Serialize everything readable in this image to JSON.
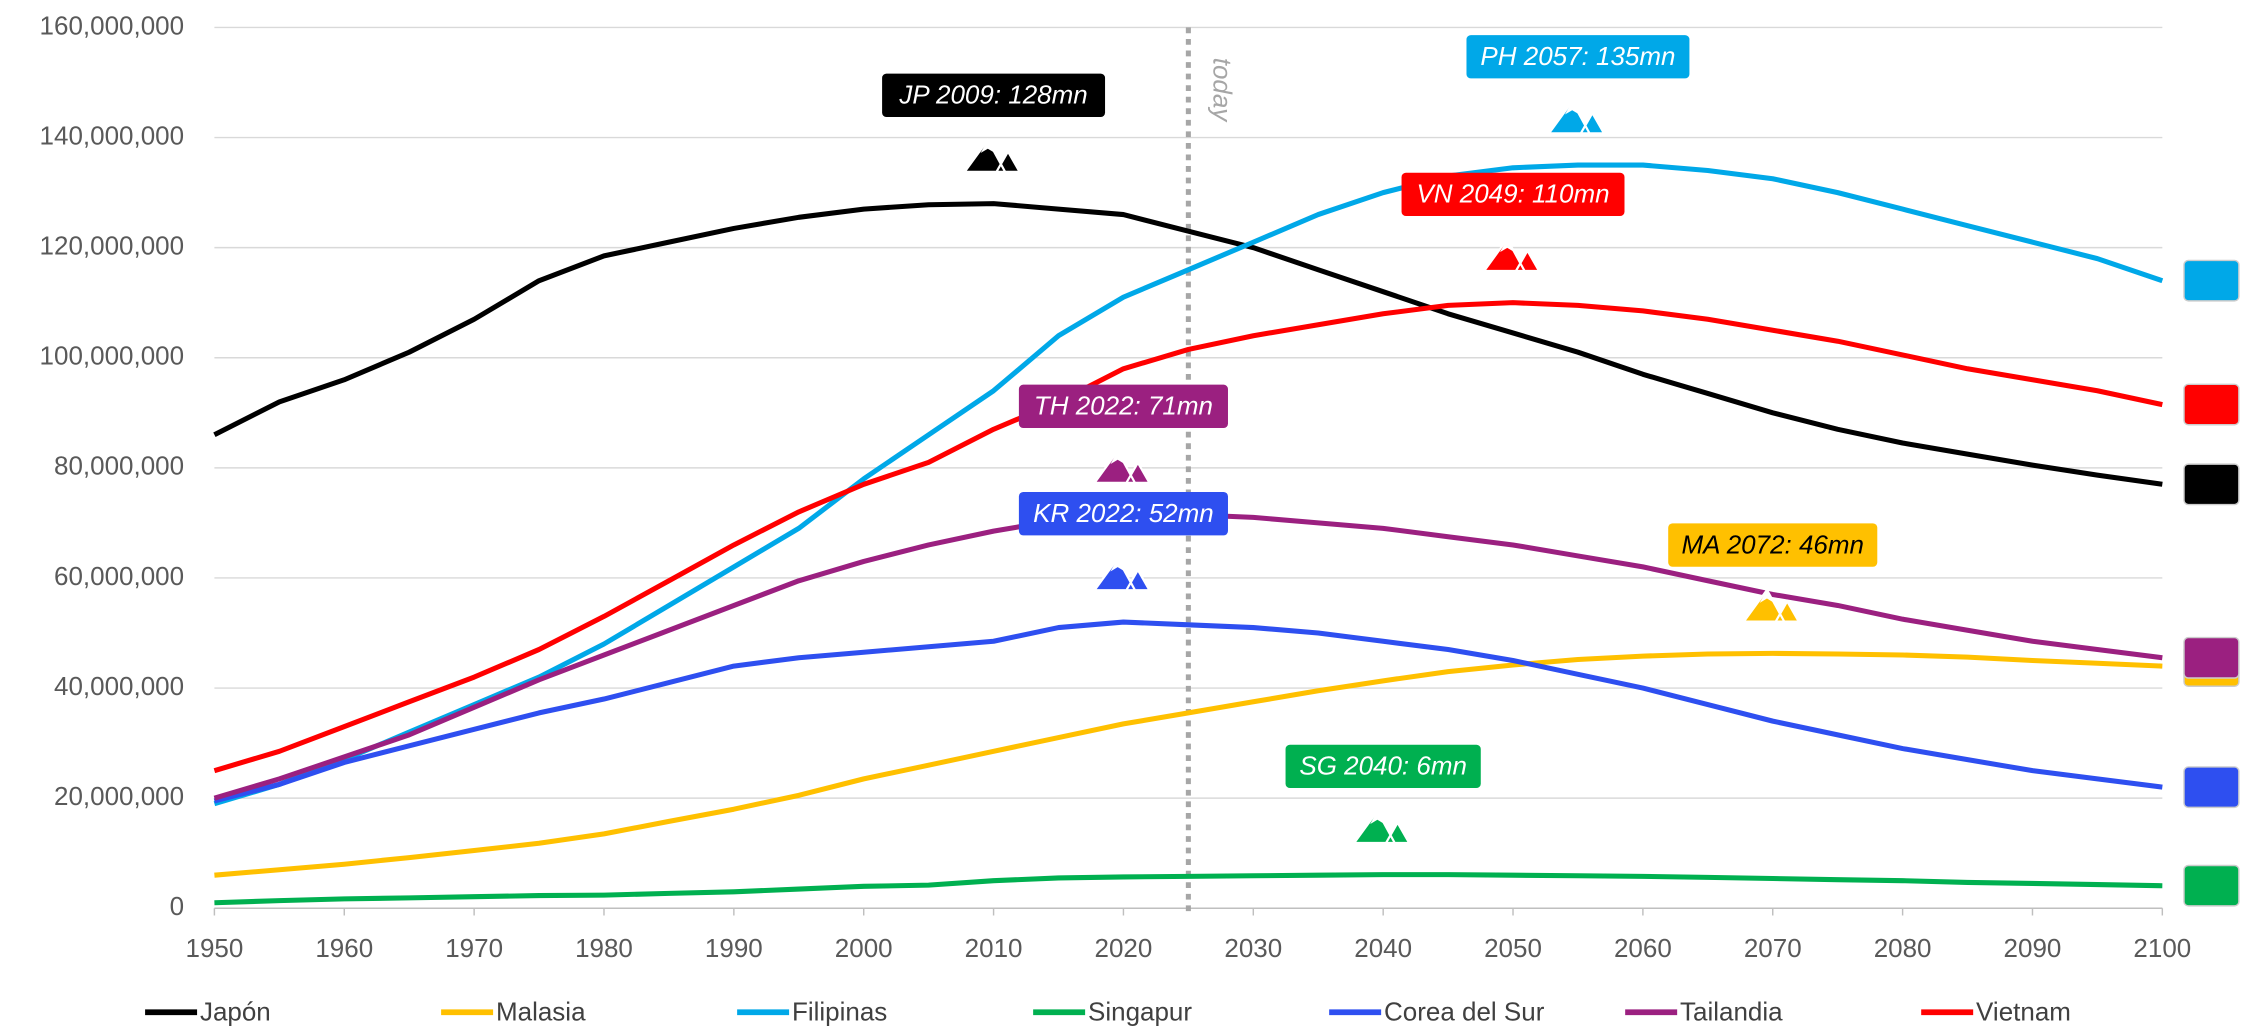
{
  "chart_data": {
    "type": "line",
    "x": [
      1950,
      1955,
      1960,
      1965,
      1970,
      1975,
      1980,
      1985,
      1990,
      1995,
      2000,
      2005,
      2010,
      2015,
      2020,
      2025,
      2030,
      2035,
      2040,
      2045,
      2050,
      2055,
      2060,
      2065,
      2070,
      2075,
      2080,
      2085,
      2090,
      2095,
      2100
    ],
    "series": [
      {
        "name": "Japón",
        "color": "#000000",
        "annotation": "JP 2009: 128mn",
        "values": [
          86000000,
          92000000,
          96000000,
          101000000,
          107000000,
          114000000,
          118500000,
          121000000,
          123500000,
          125500000,
          127000000,
          127800000,
          128000000,
          127000000,
          126000000,
          123000000,
          120000000,
          116000000,
          112000000,
          108000000,
          104500000,
          101000000,
          97000000,
          93500000,
          90000000,
          87000000,
          84500000,
          82500000,
          80500000,
          78700000,
          77000000
        ]
      },
      {
        "name": "Malasia",
        "color": "#ffc000",
        "annotation": "MA 2072: 46mn",
        "values": [
          6000000,
          7000000,
          8000000,
          9200000,
          10500000,
          11800000,
          13500000,
          15800000,
          18000000,
          20500000,
          23500000,
          26000000,
          28500000,
          31000000,
          33500000,
          35500000,
          37500000,
          39500000,
          41300000,
          43000000,
          44200000,
          45200000,
          45800000,
          46200000,
          46300000,
          46200000,
          46000000,
          45600000,
          45000000,
          44500000,
          44000000
        ]
      },
      {
        "name": "Filipinas",
        "color": "#00a8e8",
        "annotation": "PH 2057: 135mn",
        "values": [
          19000000,
          22500000,
          27000000,
          32000000,
          37000000,
          42000000,
          48000000,
          55000000,
          62000000,
          69000000,
          78000000,
          86000000,
          94000000,
          104000000,
          111000000,
          116000000,
          121000000,
          126000000,
          130000000,
          133000000,
          134500000,
          135000000,
          135000000,
          134000000,
          132500000,
          130000000,
          127000000,
          124000000,
          121000000,
          118000000,
          114000000
        ]
      },
      {
        "name": "Singapur",
        "color": "#00b050",
        "annotation": "SG 2040: 6mn",
        "values": [
          1000000,
          1400000,
          1700000,
          1900000,
          2100000,
          2300000,
          2400000,
          2700000,
          3000000,
          3500000,
          4000000,
          4200000,
          5000000,
          5500000,
          5700000,
          5800000,
          5900000,
          6000000,
          6100000,
          6100000,
          6000000,
          5900000,
          5800000,
          5600000,
          5400000,
          5200000,
          5000000,
          4700000,
          4500000,
          4300000,
          4100000
        ]
      },
      {
        "name": "Corea del Sur",
        "color": "#2e4ff0",
        "annotation": "KR 2022: 52mn",
        "values": [
          19500000,
          22500000,
          26500000,
          29500000,
          32500000,
          35500000,
          38000000,
          41000000,
          44000000,
          45500000,
          46500000,
          47500000,
          48500000,
          51000000,
          52000000,
          51500000,
          51000000,
          50000000,
          48500000,
          47000000,
          45000000,
          42500000,
          40000000,
          37000000,
          34000000,
          31500000,
          29000000,
          27000000,
          25000000,
          23500000,
          22000000
        ]
      },
      {
        "name": "Tailandia",
        "color": "#9b2080",
        "annotation": "TH 2022: 71mn",
        "values": [
          20000000,
          23500000,
          27500000,
          31500000,
          36500000,
          41500000,
          46000000,
          50500000,
          55000000,
          59500000,
          63000000,
          66000000,
          68500000,
          70500000,
          71500000,
          71500000,
          71000000,
          70000000,
          69000000,
          67500000,
          66000000,
          64000000,
          62000000,
          59500000,
          57000000,
          55000000,
          52500000,
          50500000,
          48500000,
          47000000,
          45500000
        ]
      },
      {
        "name": "Vietnam",
        "color": "#ff0000",
        "annotation": "VN 2049: 110mn",
        "values": [
          25000000,
          28500000,
          33000000,
          37500000,
          42000000,
          47000000,
          53000000,
          59500000,
          66000000,
          72000000,
          77000000,
          81000000,
          87000000,
          92000000,
          98000000,
          101500000,
          104000000,
          106000000,
          108000000,
          109500000,
          110000000,
          109500000,
          108500000,
          107000000,
          105000000,
          103000000,
          100500000,
          98000000,
          96000000,
          94000000,
          91500000
        ]
      }
    ],
    "xlim": [
      1950,
      2100
    ],
    "xticks": [
      1950,
      1960,
      1970,
      1980,
      1990,
      2000,
      2010,
      2020,
      2030,
      2040,
      2050,
      2060,
      2070,
      2080,
      2090,
      2100
    ],
    "ylim": [
      0,
      160000000
    ],
    "yticks": [
      0,
      {
        "value": 20000000,
        "label": "20,000,000"
      },
      {
        "value": 40000000,
        "label": "40,000,000"
      },
      {
        "value": 60000000,
        "label": "60,000,000"
      },
      {
        "value": 80000000,
        "label": "80,000,000"
      },
      {
        "value": 100000000,
        "label": "100,000,000"
      },
      {
        "value": 120000000,
        "label": "120,000,000"
      },
      {
        "value": 140000000,
        "label": "140,000,000"
      },
      {
        "value": 160000000,
        "label": "160,000,000"
      }
    ],
    "grid": true,
    "today": {
      "x": 2025,
      "label": "today"
    },
    "legend": "bottom"
  }
}
